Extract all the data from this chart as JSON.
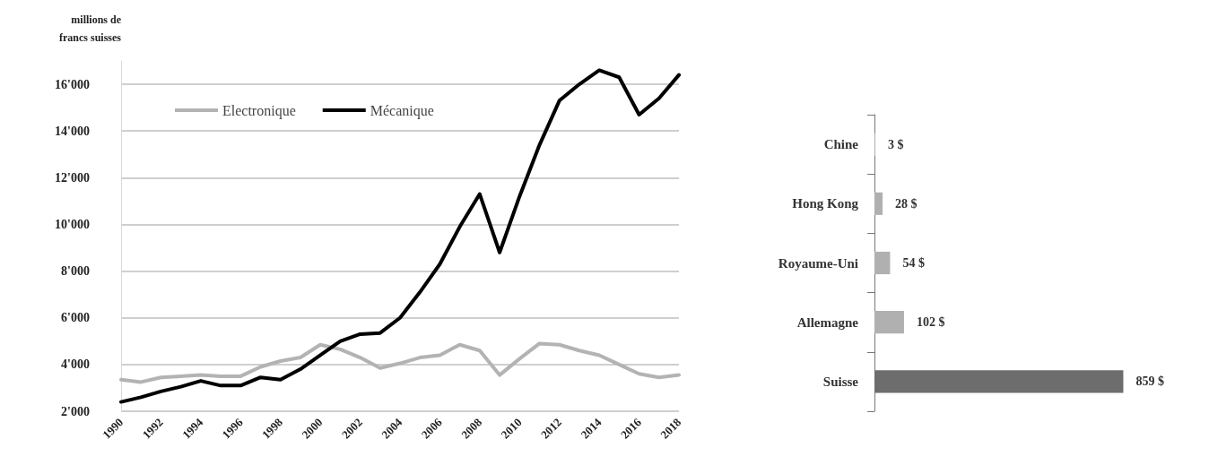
{
  "chart_data": [
    {
      "type": "line",
      "ylabel": "millions de\nfrancs suisses",
      "x": [
        1990,
        1991,
        1992,
        1993,
        1994,
        1995,
        1996,
        1997,
        1998,
        1999,
        2000,
        2001,
        2002,
        2003,
        2004,
        2005,
        2006,
        2007,
        2008,
        2009,
        2010,
        2011,
        2012,
        2013,
        2014,
        2015,
        2016,
        2017,
        2018
      ],
      "series": [
        {
          "name": "Electronique",
          "color": "#b3b3b3",
          "values": [
            3350,
            3250,
            3450,
            3500,
            3550,
            3500,
            3500,
            3900,
            4150,
            4300,
            4850,
            4650,
            4300,
            3850,
            4050,
            4300,
            4400,
            4850,
            4600,
            3550,
            4250,
            4900,
            4850,
            4600,
            4400,
            4000,
            3600,
            3450,
            3550
          ]
        },
        {
          "name": "Mécanique",
          "color": "#000000",
          "values": [
            2400,
            2600,
            2850,
            3050,
            3300,
            3100,
            3100,
            3450,
            3350,
            3800,
            4400,
            5000,
            5300,
            5350,
            6000,
            7100,
            8300,
            9900,
            11300,
            8800,
            11200,
            13400,
            15300,
            16000,
            16600,
            16300,
            14700,
            15400,
            16400
          ]
        }
      ],
      "xlim": [
        1990,
        2018
      ],
      "xticks": [
        1990,
        1992,
        1994,
        1996,
        1998,
        2000,
        2002,
        2004,
        2006,
        2008,
        2010,
        2012,
        2014,
        2016,
        2018
      ],
      "ylim": [
        2000,
        17000
      ],
      "yticks": [
        {
          "value": 2000,
          "label": "2'000"
        },
        {
          "value": 4000,
          "label": "4'000"
        },
        {
          "value": 6000,
          "label": "6'000"
        },
        {
          "value": 8000,
          "label": "8'000"
        },
        {
          "value": 10000,
          "label": "10'000"
        },
        {
          "value": 12000,
          "label": "12'000"
        },
        {
          "value": 14000,
          "label": "14'000"
        },
        {
          "value": 16000,
          "label": "16'000"
        }
      ],
      "grid": "y",
      "legend": "top left",
      "marker": "none",
      "line_style": "solid"
    },
    {
      "type": "bar",
      "orientation": "horizontal",
      "categories": [
        "Chine",
        "Hong Kong",
        "Royaume-Uni",
        "Allemagne",
        "Suisse"
      ],
      "values": [
        3,
        28,
        54,
        102,
        859
      ],
      "colors": [
        "#b0b0b0",
        "#b0b0b0",
        "#b0b0b0",
        "#b0b0b0",
        "#6d6d6d"
      ],
      "value_labels": [
        "3 $",
        "28 $",
        "54 $",
        "102 $",
        "859 $"
      ]
    }
  ]
}
